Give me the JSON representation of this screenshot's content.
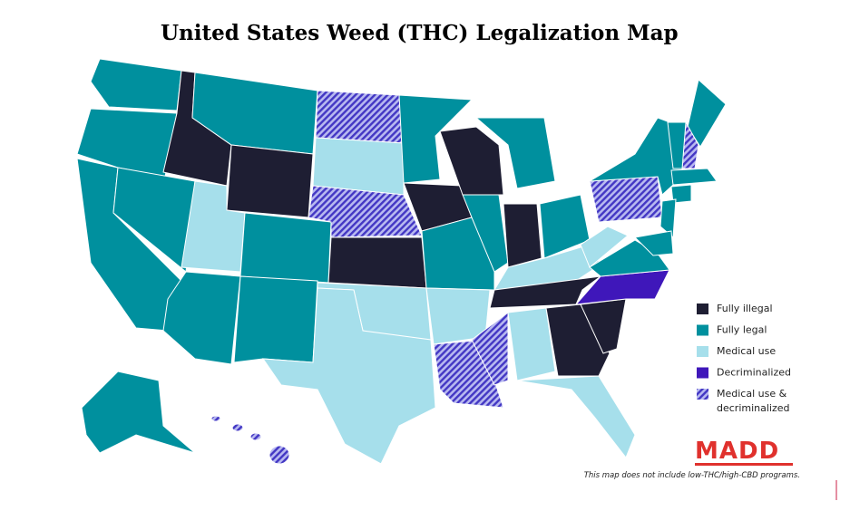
{
  "title": "United States Weed (THC) Legalization Map",
  "legend": [
    {
      "label": "Fully illegal",
      "color": "#1e1e33"
    },
    {
      "label": "Fully legal",
      "color": "#00909e"
    },
    {
      "label": "Medical use",
      "color": "#a6dfeb"
    },
    {
      "label": "Decriminalized",
      "color": "#3f17ba"
    },
    {
      "label_lines": [
        "Medical use &",
        "decriminalized"
      ],
      "color": "#4337c4",
      "hatched": true
    }
  ],
  "logo": "MADD",
  "footnote": "This map does not include low-THC/high-CBD programs."
}
